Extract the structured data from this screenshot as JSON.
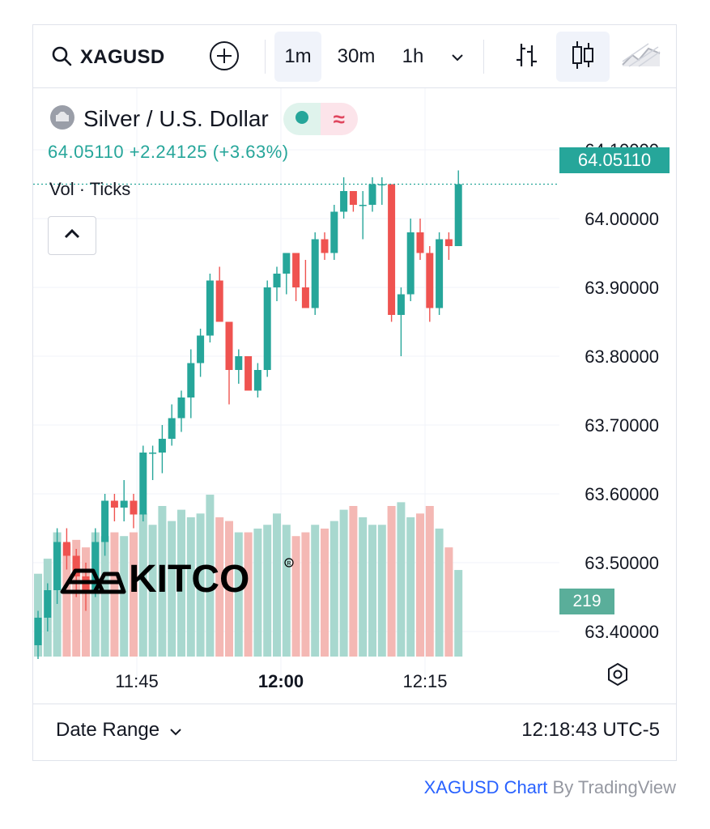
{
  "toolbar": {
    "symbol": "XAGUSD",
    "intervals": [
      "1m",
      "30m",
      "1h"
    ],
    "active_interval": "1m"
  },
  "legend": {
    "name": "Silver / U.S. Dollar",
    "values": "64.05110 +2.24125 (+3.63%)",
    "status_icon": "≈",
    "vol_label": "Vol · Ticks"
  },
  "price_axis": [
    "64.10000",
    "64.00000",
    "63.90000",
    "63.80000",
    "63.70000",
    "63.60000",
    "63.50000",
    "63.40000"
  ],
  "time_axis": [
    {
      "label": "11:45",
      "bold": false
    },
    {
      "label": "12:00",
      "bold": true
    },
    {
      "label": "12:15",
      "bold": false
    }
  ],
  "last_price_badge": "64.05110",
  "volume_badge": "219",
  "watermark": "KITCO",
  "bottom": {
    "date_range": "Date Range",
    "clock": "12:18:43 UTC-5"
  },
  "attribution": {
    "link": "XAGUSD Chart",
    "by": " By TradingView"
  },
  "colors": {
    "up": "#26a69a",
    "down": "#ef5350",
    "up_volume": "#a8d8cf",
    "down_volume": "#f4b8b4"
  },
  "chart_data": {
    "type": "candlestick",
    "title": "Silver / U.S. Dollar",
    "x_ticks": [
      "11:45",
      "12:00",
      "12:15"
    ],
    "ylim": [
      63.4,
      64.12
    ],
    "series": [
      {
        "name": "Silver / U.S. Dollar",
        "ohlc": [
          [
            63.38,
            63.43,
            63.36,
            63.42
          ],
          [
            63.42,
            63.47,
            63.4,
            63.46
          ],
          [
            63.46,
            63.55,
            63.44,
            63.53
          ],
          [
            63.53,
            63.55,
            63.49,
            63.51
          ],
          [
            63.51,
            63.52,
            63.45,
            63.48
          ],
          [
            63.48,
            63.5,
            63.43,
            63.46
          ],
          [
            63.46,
            63.55,
            63.45,
            63.53
          ],
          [
            63.53,
            63.6,
            63.51,
            63.59
          ],
          [
            63.59,
            63.6,
            63.56,
            63.58
          ],
          [
            63.58,
            63.62,
            63.56,
            63.59
          ],
          [
            63.59,
            63.6,
            63.55,
            63.57
          ],
          [
            63.57,
            63.67,
            63.56,
            63.66
          ],
          [
            63.66,
            63.67,
            63.62,
            63.66
          ],
          [
            63.66,
            63.7,
            63.63,
            63.68
          ],
          [
            63.68,
            63.73,
            63.67,
            63.71
          ],
          [
            63.71,
            63.75,
            63.69,
            63.74
          ],
          [
            63.74,
            63.81,
            63.71,
            63.79
          ],
          [
            63.79,
            63.84,
            63.77,
            63.83
          ],
          [
            63.83,
            63.92,
            63.82,
            63.91
          ],
          [
            63.91,
            63.93,
            63.85,
            63.85
          ],
          [
            63.85,
            63.85,
            63.73,
            63.78
          ],
          [
            63.78,
            63.81,
            63.76,
            63.8
          ],
          [
            63.8,
            63.8,
            63.75,
            63.75
          ],
          [
            63.75,
            63.79,
            63.74,
            63.78
          ],
          [
            63.78,
            63.91,
            63.77,
            63.9
          ],
          [
            63.9,
            63.93,
            63.88,
            63.92
          ],
          [
            63.92,
            63.95,
            63.89,
            63.95
          ],
          [
            63.95,
            63.95,
            63.88,
            63.9
          ],
          [
            63.9,
            63.94,
            63.87,
            63.87
          ],
          [
            63.87,
            63.98,
            63.86,
            63.97
          ],
          [
            63.97,
            63.98,
            63.94,
            63.95
          ],
          [
            63.95,
            64.02,
            63.94,
            64.01
          ],
          [
            64.01,
            64.06,
            64.0,
            64.04
          ],
          [
            64.04,
            64.04,
            64.01,
            64.02
          ],
          [
            64.02,
            64.04,
            63.97,
            64.02
          ],
          [
            64.02,
            64.06,
            64.01,
            64.05
          ],
          [
            64.05,
            64.06,
            64.02,
            64.05
          ],
          [
            64.05,
            64.05,
            63.85,
            63.86
          ],
          [
            63.86,
            63.9,
            63.8,
            63.89
          ],
          [
            63.89,
            64.0,
            63.88,
            63.98
          ],
          [
            63.98,
            64.0,
            63.94,
            63.95
          ],
          [
            63.95,
            63.96,
            63.85,
            63.87
          ],
          [
            63.87,
            63.98,
            63.86,
            63.97
          ],
          [
            63.97,
            63.98,
            63.94,
            63.96
          ],
          [
            63.96,
            64.07,
            63.96,
            64.05
          ]
        ]
      },
      {
        "name": "Vol · Ticks",
        "values": [
          110,
          130,
          165,
          150,
          155,
          145,
          165,
          160,
          165,
          160,
          165,
          190,
          175,
          200,
          180,
          195,
          185,
          190,
          215,
          185,
          180,
          165,
          165,
          170,
          175,
          190,
          175,
          160,
          165,
          175,
          170,
          180,
          195,
          200,
          185,
          175,
          175,
          200,
          205,
          185,
          190,
          200,
          170,
          145,
          115
        ]
      }
    ]
  }
}
